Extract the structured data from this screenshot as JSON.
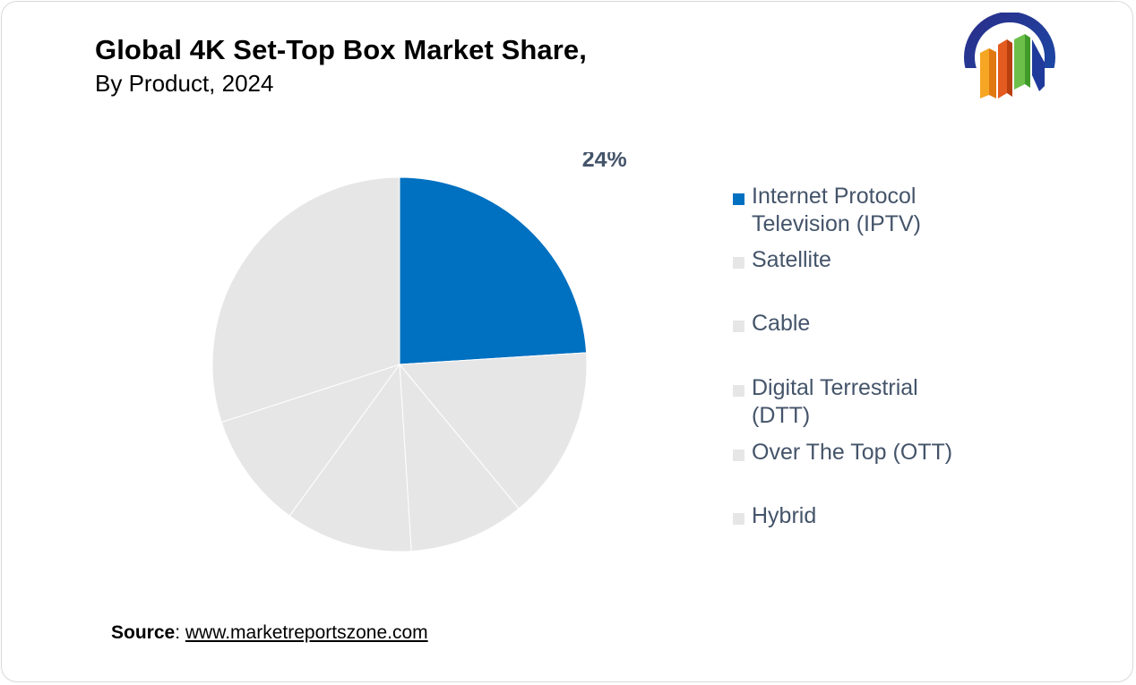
{
  "header": {
    "title": "Global 4K Set-Top Box Market Share,",
    "subtitle": "By Product, 2024"
  },
  "logo": {
    "icon": "market-reports-zone-logo-icon"
  },
  "chart_data": {
    "type": "pie",
    "categories": [
      "Internet Protocol Television (IPTV)",
      "Satellite",
      "Cable",
      "Digital Terrestrial (DTT)",
      "Over The Top (OTT)",
      "Hybrid"
    ],
    "values": [
      24,
      15,
      10,
      11,
      10,
      30
    ],
    "data_labels": [
      "24%",
      "",
      "",
      "",
      "",
      ""
    ],
    "colors": [
      "#0070c0",
      "#e7e6e6",
      "#e7e6e6",
      "#e7e6e6",
      "#e7e6e6",
      "#e7e6e6"
    ],
    "slice_border_color": "#ffffff",
    "legend_position": "right",
    "legend_text_color": "#44546a",
    "legend_labels": [
      "Internet Protocol\nTelevision (IPTV)",
      "Satellite",
      "Cable",
      "Digital Terrestrial\n(DTT)",
      "Over The Top (OTT)",
      "Hybrid"
    ]
  },
  "footer": {
    "source_label": "Source",
    "source_sep": ": ",
    "source_link": "www.marketreportszone.com"
  }
}
